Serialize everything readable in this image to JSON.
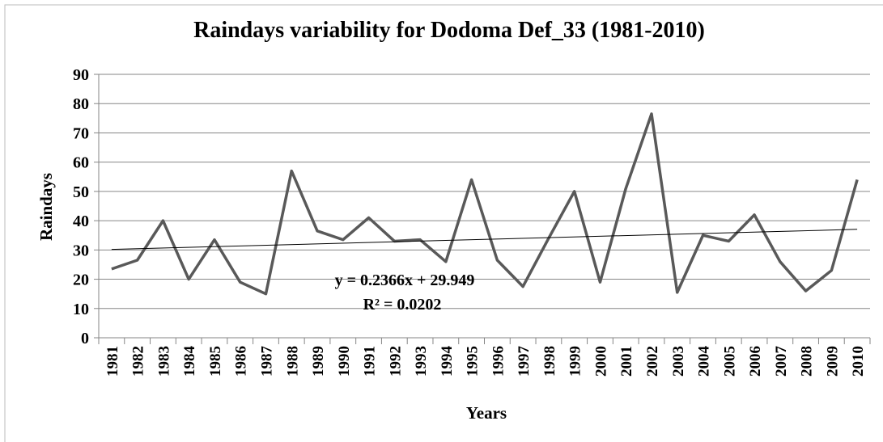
{
  "chart_data": {
    "type": "line",
    "title": "Raindays variability for Dodoma Def_33 (1981-2010)",
    "x_label": "Years",
    "y_label": "Raindays",
    "categories": [
      "1981",
      "1982",
      "1983",
      "1984",
      "1985",
      "1986",
      "1987",
      "1988",
      "1989",
      "1990",
      "1991",
      "1992",
      "1993",
      "1994",
      "1995",
      "1996",
      "1997",
      "1998",
      "1999",
      "2000",
      "2001",
      "2002",
      "2003",
      "2004",
      "2005",
      "2006",
      "2007",
      "2008",
      "2009",
      "2010"
    ],
    "series": [
      {
        "name": "Raindays",
        "color": "#595959",
        "values": [
          23.5,
          26.5,
          40,
          20,
          33.5,
          19,
          15,
          57,
          36.5,
          33.5,
          41,
          33,
          33.5,
          26,
          54,
          26.5,
          17.5,
          34,
          50,
          19,
          51,
          76.5,
          15.5,
          35,
          33,
          42,
          26,
          16,
          23,
          54
        ]
      }
    ],
    "trendline": {
      "slope": 0.2366,
      "intercept": 29.949,
      "equation": "y = 0.2366x + 29.949",
      "r_squared": "R² = 0.0202"
    },
    "ylim": [
      0,
      90
    ],
    "yticks": [
      0,
      10,
      20,
      30,
      40,
      50,
      60,
      70,
      80,
      90
    ],
    "grid": true
  }
}
